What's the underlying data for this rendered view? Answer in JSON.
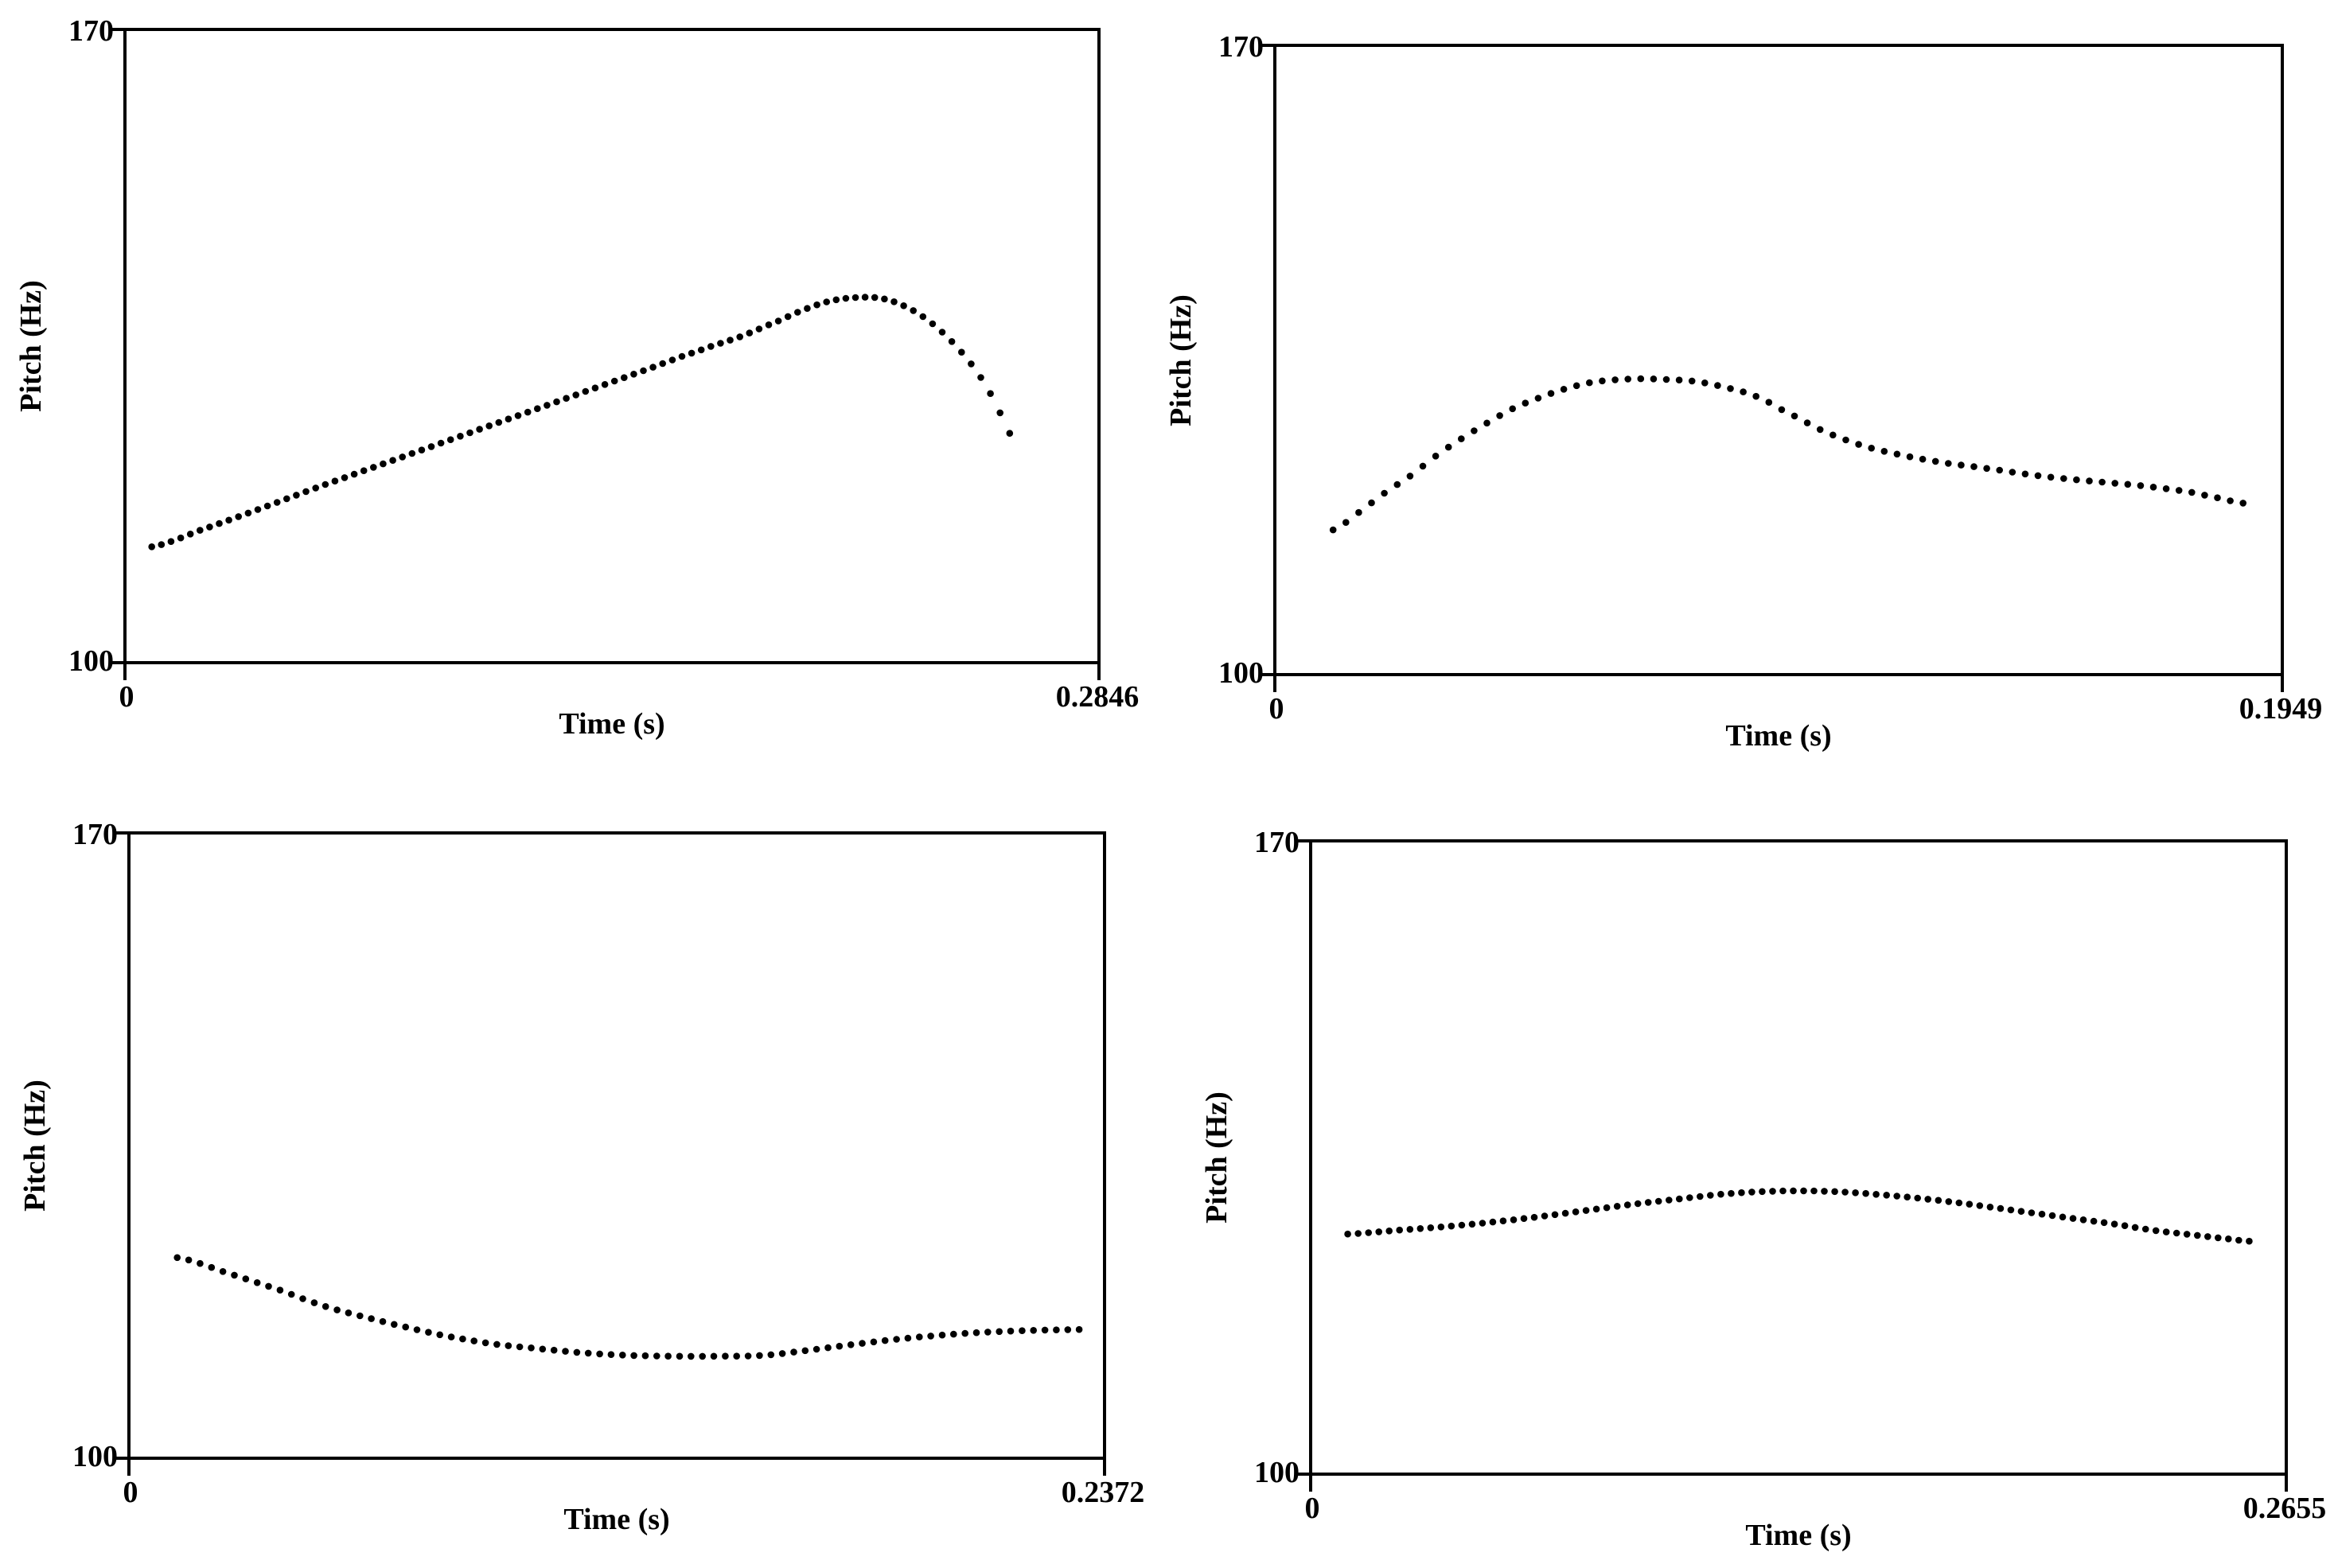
{
  "colors": {
    "ink": "#000000",
    "background": "#ffffff"
  },
  "plots": [
    {
      "id": "top-left",
      "ylabel": "Pitch (Hz)",
      "xlabel": "Time (s)",
      "y_max_label": "170",
      "y_min_label": "100",
      "x_min_label": "0",
      "x_max_label": "0.2846"
    },
    {
      "id": "top-right",
      "ylabel": "Pitch (Hz)",
      "xlabel": "Time (s)",
      "y_max_label": "170",
      "y_min_label": "100",
      "x_min_label": "0",
      "x_max_label": "0.1949"
    },
    {
      "id": "bottom-left",
      "ylabel": "Pitch (Hz)",
      "xlabel": "Time (s)",
      "y_max_label": "170",
      "y_min_label": "100",
      "x_min_label": "0",
      "x_max_label": "0.2372"
    },
    {
      "id": "bottom-right",
      "ylabel": "Pitch (Hz)",
      "xlabel": "Time (s)",
      "y_max_label": "170",
      "y_min_label": "100",
      "x_min_label": "0",
      "x_max_label": "0.2655"
    }
  ],
  "chart_data": [
    {
      "type": "scatter",
      "marker": "dot",
      "title": "",
      "xlabel": "Time (s)",
      "ylabel": "Pitch (Hz)",
      "xlim": [
        0,
        0.2846
      ],
      "ylim": [
        100,
        170
      ],
      "grid": false,
      "legend": false,
      "n_dots": 90,
      "t_start": 0.0074,
      "t_end": 0.2589,
      "dot_radius": 4.3,
      "x": [
        0.0074,
        0.022,
        0.0382,
        0.0545,
        0.0707,
        0.0869,
        0.1031,
        0.1194,
        0.1356,
        0.1518,
        0.168,
        0.1796,
        0.1912,
        0.2005,
        0.2074,
        0.2144,
        0.2213,
        0.2283,
        0.2352,
        0.2422,
        0.2491,
        0.2549,
        0.2589
      ],
      "y": [
        112.7,
        114.6,
        116.8,
        119.1,
        121.3,
        123.5,
        125.7,
        127.9,
        130.1,
        132.3,
        134.5,
        136.0,
        137.8,
        139.3,
        140.1,
        140.4,
        140.3,
        139.4,
        137.8,
        135.4,
        132.3,
        128.7,
        125.3
      ]
    },
    {
      "type": "scatter",
      "marker": "dot",
      "title": "",
      "xlabel": "Time (s)",
      "ylabel": "Pitch (Hz)",
      "xlim": [
        0,
        0.1949
      ],
      "ylim": [
        100,
        170
      ],
      "grid": false,
      "legend": false,
      "n_dots": 72,
      "t_start": 0.011,
      "t_end": 0.1876,
      "dot_radius": 4.3,
      "x": [
        0.011,
        0.0161,
        0.0212,
        0.0261,
        0.031,
        0.0359,
        0.041,
        0.046,
        0.0511,
        0.0562,
        0.0612,
        0.0661,
        0.0712,
        0.0763,
        0.0813,
        0.0875,
        0.0928,
        0.0982,
        0.106,
        0.1139,
        0.1219,
        0.1297,
        0.1375,
        0.1473,
        0.1572,
        0.167,
        0.1768,
        0.1826,
        0.1876
      ],
      "y": [
        116.0,
        118.0,
        120.2,
        122.1,
        124.3,
        126.2,
        128.0,
        129.6,
        130.8,
        131.8,
        132.5,
        132.8,
        132.9,
        132.8,
        132.6,
        131.9,
        131.0,
        129.4,
        127.1,
        125.4,
        124.3,
        123.5,
        122.9,
        122.1,
        121.5,
        121.0,
        120.3,
        119.6,
        119.0
      ]
    },
    {
      "type": "scatter",
      "marker": "dot",
      "title": "",
      "xlabel": "Time (s)",
      "ylabel": "Pitch (Hz)",
      "xlim": [
        0,
        0.2372
      ],
      "ylim": [
        100,
        170
      ],
      "grid": false,
      "legend": false,
      "n_dots": 80,
      "t_start": 0.0114,
      "t_end": 0.2314,
      "dot_radius": 4.3,
      "x": [
        0.0114,
        0.0241,
        0.0361,
        0.0469,
        0.0563,
        0.0669,
        0.0766,
        0.0883,
        0.0984,
        0.1099,
        0.1215,
        0.1331,
        0.1439,
        0.1543,
        0.1659,
        0.1776,
        0.189,
        0.1986,
        0.2085,
        0.2199,
        0.2314
      ],
      "y": [
        122.4,
        120.6,
        118.8,
        117.0,
        115.8,
        114.6,
        113.6,
        112.7,
        112.2,
        111.7,
        111.4,
        111.3,
        111.3,
        111.4,
        112.0,
        112.7,
        113.3,
        113.7,
        114.0,
        114.2,
        114.3
      ]
    },
    {
      "type": "scatter",
      "marker": "dot",
      "title": "",
      "xlabel": "Time (s)",
      "ylabel": "Pitch (Hz)",
      "xlim": [
        0,
        0.2655
      ],
      "ylim": [
        100,
        170
      ],
      "grid": false,
      "legend": false,
      "n_dots": 88,
      "t_start": 0.0097,
      "t_end": 0.2558,
      "dot_radius": 4.3,
      "x": [
        0.0097,
        0.0227,
        0.0356,
        0.0486,
        0.0615,
        0.0745,
        0.0874,
        0.1004,
        0.1112,
        0.122,
        0.1328,
        0.1435,
        0.1543,
        0.1651,
        0.1759,
        0.1867,
        0.1975,
        0.2083,
        0.2191,
        0.2299,
        0.2407,
        0.2493,
        0.2558
      ],
      "y": [
        126.5,
        126.9,
        127.3,
        127.8,
        128.4,
        129.1,
        129.8,
        130.4,
        130.9,
        131.2,
        131.3,
        131.2,
        130.9,
        130.5,
        130.0,
        129.4,
        128.8,
        128.2,
        127.6,
        126.9,
        126.4,
        126.0,
        125.7
      ]
    }
  ]
}
